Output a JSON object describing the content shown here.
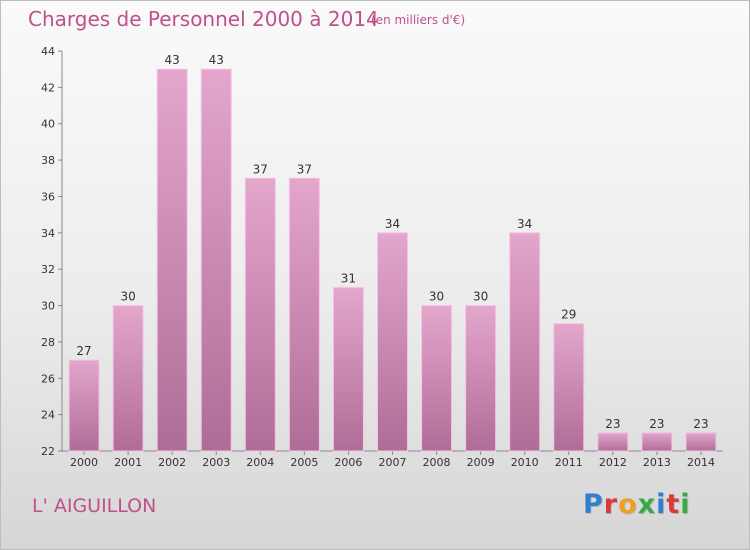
{
  "header": {
    "title": "Charges de Personnel 2000 à 2014",
    "subtitle": "(en milliers d'€)"
  },
  "footer": {
    "commune": "L' AIGUILLON",
    "logo_letters": [
      {
        "ch": "P",
        "color": "#2f7fd0"
      },
      {
        "ch": "r",
        "color": "#d83a3a"
      },
      {
        "ch": "o",
        "color": "#f0a020"
      },
      {
        "ch": "x",
        "color": "#3aa845"
      },
      {
        "ch": "i",
        "color": "#2f7fd0"
      },
      {
        "ch": "t",
        "color": "#d83a3a"
      },
      {
        "ch": "i",
        "color": "#3aa845"
      }
    ]
  },
  "chart_data": {
    "type": "bar",
    "categories": [
      "2000",
      "2001",
      "2002",
      "2003",
      "2004",
      "2005",
      "2006",
      "2007",
      "2008",
      "2009",
      "2010",
      "2011",
      "2012",
      "2013",
      "2014"
    ],
    "values": [
      27,
      30,
      43,
      43,
      37,
      37,
      31,
      34,
      30,
      30,
      34,
      29,
      23,
      23,
      23
    ],
    "ylim": [
      22,
      44
    ],
    "yticks": [
      22,
      24,
      26,
      28,
      30,
      32,
      34,
      36,
      38,
      40,
      42,
      44
    ],
    "grid": false,
    "data_labels": true,
    "bar_color_top": "#e4a6cc",
    "bar_color_bottom": "#b06c98"
  }
}
